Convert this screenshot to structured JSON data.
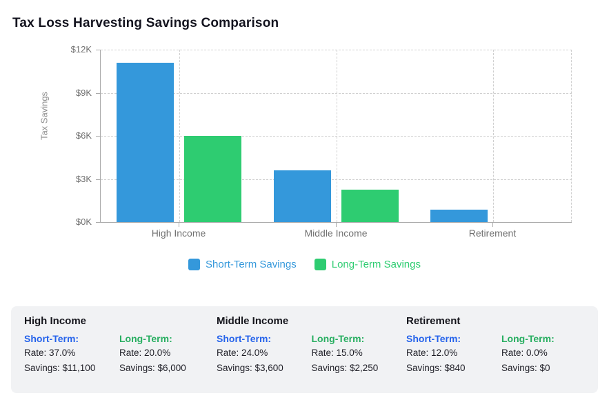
{
  "title": "Tax Loss Harvesting Savings Comparison",
  "chart_data": {
    "type": "bar",
    "title": "Tax Loss Harvesting Savings Comparison",
    "xlabel": "",
    "ylabel": "Tax Savings",
    "categories": [
      "High Income",
      "Middle Income",
      "Retirement"
    ],
    "series": [
      {
        "name": "Short-Term Savings",
        "color": "#3498db",
        "values": [
          11100,
          3600,
          840
        ]
      },
      {
        "name": "Long-Term Savings",
        "color": "#2ecc71",
        "values": [
          6000,
          2250,
          0
        ]
      }
    ],
    "ylim": [
      0,
      12000
    ],
    "yticks": [
      {
        "label": "$0K",
        "value": 0
      },
      {
        "label": "$3K",
        "value": 3000
      },
      {
        "label": "$6K",
        "value": 6000
      },
      {
        "label": "$9K",
        "value": 9000
      },
      {
        "label": "$12K",
        "value": 12000
      }
    ],
    "grid": "dashed",
    "legend_position": "bottom"
  },
  "colors": {
    "short_term_bar": "#3498db",
    "long_term_bar": "#2ecc71",
    "short_term_label": "#2563eb",
    "long_term_label": "#27ae60"
  },
  "details": {
    "groups": [
      {
        "name": "High Income",
        "short_term": {
          "label": "Short-Term:",
          "rate": "Rate: 37.0%",
          "savings": "Savings: $11,100"
        },
        "long_term": {
          "label": "Long-Term:",
          "rate": "Rate: 20.0%",
          "savings": "Savings: $6,000"
        }
      },
      {
        "name": "Middle Income",
        "short_term": {
          "label": "Short-Term:",
          "rate": "Rate: 24.0%",
          "savings": "Savings: $3,600"
        },
        "long_term": {
          "label": "Long-Term:",
          "rate": "Rate: 15.0%",
          "savings": "Savings: $2,250"
        }
      },
      {
        "name": "Retirement",
        "short_term": {
          "label": "Short-Term:",
          "rate": "Rate: 12.0%",
          "savings": "Savings: $840"
        },
        "long_term": {
          "label": "Long-Term:",
          "rate": "Rate: 0.0%",
          "savings": "Savings: $0"
        }
      }
    ]
  }
}
